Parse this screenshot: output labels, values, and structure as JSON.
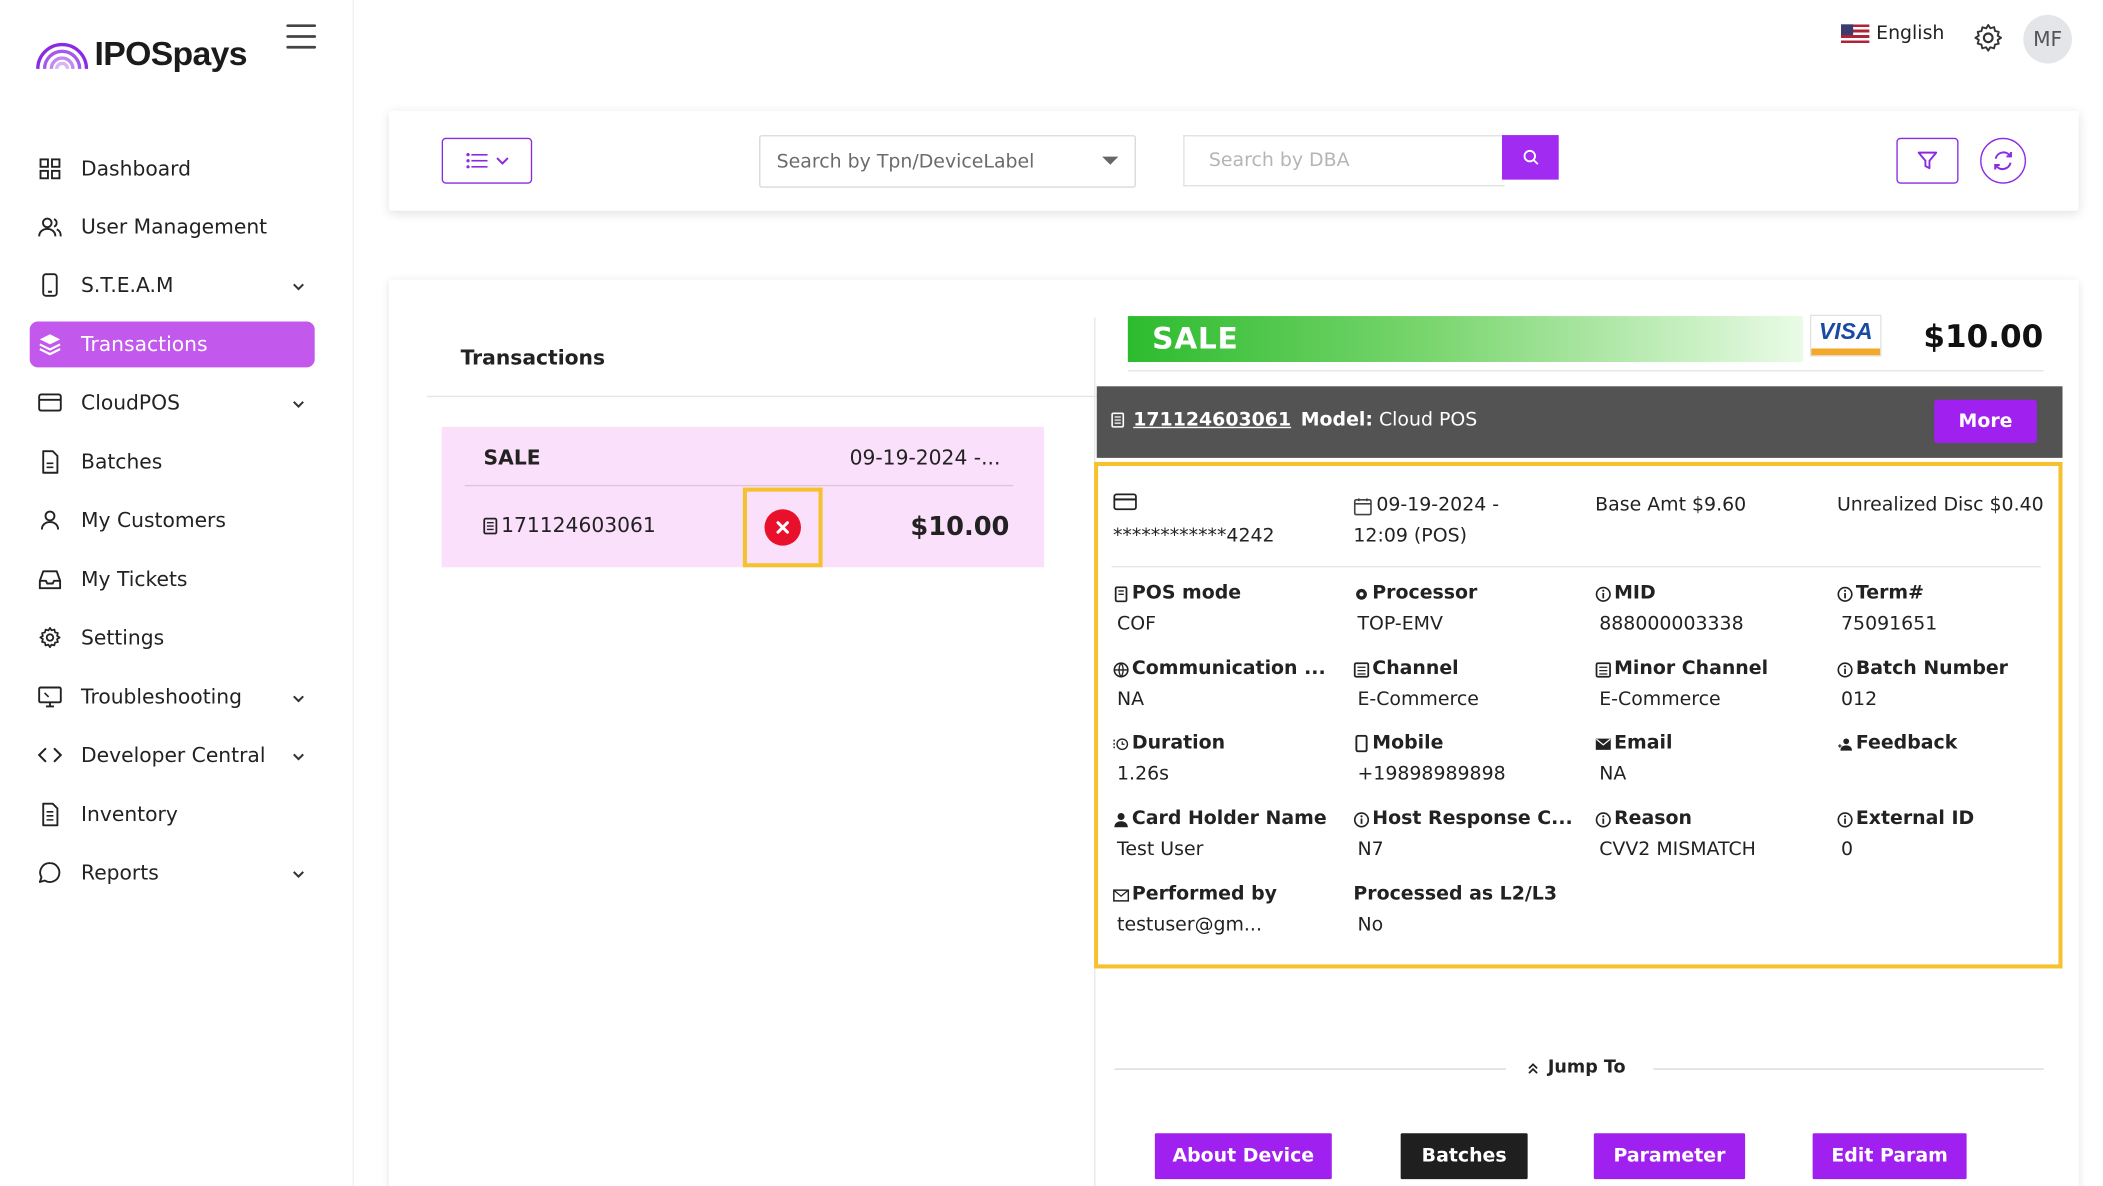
{
  "brand": {
    "name": "IPOSpays"
  },
  "sidebar": {
    "items": [
      {
        "label": "Dashboard",
        "icon": "grid-icon",
        "chevron": false
      },
      {
        "label": "User Management",
        "icon": "users-icon",
        "chevron": false
      },
      {
        "label": "S.T.E.A.M",
        "icon": "device-icon",
        "chevron": true
      },
      {
        "label": "Transactions",
        "icon": "layers-icon",
        "chevron": false,
        "active": true
      },
      {
        "label": "CloudPOS",
        "icon": "card-icon",
        "chevron": true
      },
      {
        "label": "Batches",
        "icon": "file-icon",
        "chevron": false
      },
      {
        "label": "My Customers",
        "icon": "user-icon",
        "chevron": false
      },
      {
        "label": "My Tickets",
        "icon": "inbox-icon",
        "chevron": false
      },
      {
        "label": "Settings",
        "icon": "gear-icon",
        "chevron": false
      },
      {
        "label": "Troubleshooting",
        "icon": "monitor-icon",
        "chevron": true
      },
      {
        "label": "Developer Central",
        "icon": "code-icon",
        "chevron": true
      },
      {
        "label": "Inventory",
        "icon": "document-icon",
        "chevron": false
      },
      {
        "label": "Reports",
        "icon": "chat-icon",
        "chevron": true
      }
    ]
  },
  "header": {
    "language": "English",
    "avatar_initials": "MF"
  },
  "filters": {
    "tpn_placeholder": "Search by Tpn/DeviceLabel",
    "dba_placeholder": "Search by DBA"
  },
  "transactions": {
    "title": "Transactions",
    "list": [
      {
        "type": "SALE",
        "date": "09-19-2024 -...",
        "id": "171124603061",
        "amount": "$10.00",
        "status": "failed"
      }
    ]
  },
  "detail": {
    "type": "SALE",
    "card_brand": "VISA",
    "amount": "$10.00",
    "transaction_id": "171124603061",
    "model_label": "Model:",
    "model_value": "Cloud POS",
    "more_label": "More",
    "card_number": "************4242",
    "datetime_line1": "09-19-2024 -",
    "datetime_line2": "12:09 (POS)",
    "base_amt": "Base Amt $9.60",
    "unrealized_disc": "Unrealized Disc $0.40",
    "fields": [
      {
        "key": "POS mode",
        "value": "COF",
        "icon": "pos-icon"
      },
      {
        "key": "Processor",
        "value": "TOP-EMV",
        "icon": "processor-icon"
      },
      {
        "key": "MID",
        "value": "888000003338",
        "icon": "info-icon"
      },
      {
        "key": "Term#",
        "value": "75091651",
        "icon": "info-icon"
      },
      {
        "key": "Communication ...",
        "value": "NA",
        "icon": "globe-icon"
      },
      {
        "key": "Channel",
        "value": "E-Commerce",
        "icon": "channel-icon"
      },
      {
        "key": "Minor Channel",
        "value": "E-Commerce",
        "icon": "channel-icon"
      },
      {
        "key": "Batch Number",
        "value": "012",
        "icon": "info-icon"
      },
      {
        "key": "Duration",
        "value": "1.26s",
        "icon": "clock-icon"
      },
      {
        "key": "Mobile",
        "value": "+19898989898",
        "icon": "mobile-icon"
      },
      {
        "key": "Email",
        "value": "NA",
        "icon": "mail-icon"
      },
      {
        "key": "Feedback",
        "value": "",
        "icon": "people-icon"
      },
      {
        "key": "Card Holder Name",
        "value": "Test User",
        "icon": "person-icon"
      },
      {
        "key": "Host Response C...",
        "value": "N7",
        "icon": "info-icon"
      },
      {
        "key": "Reason",
        "value": "CVV2 MISMATCH",
        "icon": "info-icon"
      },
      {
        "key": "External ID",
        "value": "0",
        "icon": "info-icon"
      },
      {
        "key": "Performed by",
        "value": "testuser@gm...",
        "icon": "envelope-icon"
      },
      {
        "key": "Processed as L2/L3",
        "value": "No",
        "icon": ""
      }
    ]
  },
  "jump": {
    "label": "Jump To",
    "buttons": [
      {
        "label": "About Device",
        "color": "#a020f0"
      },
      {
        "label": "Batches",
        "color": "#1f1f1f"
      },
      {
        "label": "Parameter",
        "color": "#a020f0"
      },
      {
        "label": "Edit Param",
        "color": "#a020f0"
      }
    ]
  },
  "colors": {
    "accent": "#a020f0",
    "active_nav": "#c259ec",
    "sale_green": "#2dbb2e",
    "highlight": "#f5c12e",
    "error": "#e8102a"
  }
}
